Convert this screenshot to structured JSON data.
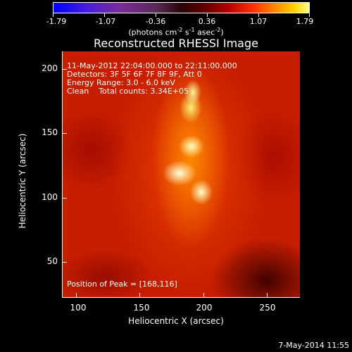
{
  "colorbar": {
    "ticks": [
      "-1.79",
      "-1.07",
      "-0.36",
      "0.36",
      "1.07",
      "1.79"
    ],
    "units_text": "(photons cm",
    "units_exp1": "-2",
    "units_mid": " s",
    "units_exp2": "-1",
    "units_end": " asec",
    "units_exp3": "-2",
    "units_close": ")"
  },
  "title": "Reconstructed RHESSI Image",
  "info": {
    "line1": "11-May-2012 22:04:00.000 to 22:11:00.000",
    "line2": "Detectors: 3F 5F 6F 7F 8F 9F, Att 0",
    "line3": "Energy Range: 3.0 - 6.0 keV",
    "line4": "Clean    Total counts: 3.34E+05",
    "peak": "Position of Peak = [168,116]"
  },
  "axes": {
    "xlabel": "Heliocentric X (arcsec)",
    "ylabel": "Heliocentric Y (arcsec)",
    "xticks": [
      "100",
      "150",
      "200",
      "250"
    ],
    "yticks": [
      "200",
      "150",
      "100",
      "50"
    ]
  },
  "footer": {
    "date": "7-May-2014 11:55"
  },
  "colors": {
    "background": "#000000",
    "map_base": "#c81e00",
    "peak": "#ffffc0"
  }
}
